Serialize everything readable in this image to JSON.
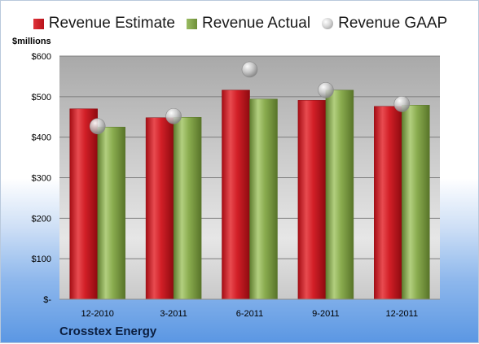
{
  "chart_data": {
    "type": "bar",
    "title": "",
    "ylabel": "$millions",
    "xlabel": "",
    "categories": [
      "12-2010",
      "3-2011",
      "6-2011",
      "9-2011",
      "12-2011"
    ],
    "series": [
      {
        "name": "Revenue Estimate",
        "kind": "bar",
        "color": "#c8141c",
        "values": [
          470,
          448,
          516,
          491,
          476
        ]
      },
      {
        "name": "Revenue Actual",
        "kind": "bar",
        "color": "#7a9d40",
        "values": [
          425,
          449,
          494,
          516,
          479
        ]
      },
      {
        "name": "Revenue GAAP",
        "kind": "marker",
        "color": "#b8b8b8",
        "values": [
          427,
          452,
          567,
          516,
          482
        ]
      }
    ],
    "ylim": [
      0,
      600
    ],
    "yticks": [
      0,
      100,
      200,
      300,
      400,
      500,
      600
    ],
    "ytick_labels": [
      "$-",
      "$100",
      "$200",
      "$300",
      "$400",
      "$500",
      "$600"
    ],
    "grid": true,
    "legend_position": "top"
  },
  "footer": {
    "company": "Crosstex Energy"
  }
}
